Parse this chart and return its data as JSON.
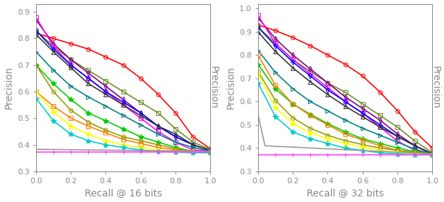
{
  "plot1": {
    "xlabel": "Recall @ 16 bits",
    "ylabel": "Precision",
    "ylim": [
      0.3,
      0.93
    ],
    "xlim": [
      0.0,
      1.0
    ],
    "yticks": [
      0.3,
      0.4,
      0.5,
      0.6,
      0.7,
      0.8,
      0.9
    ],
    "xticks": [
      0.0,
      0.2,
      0.4,
      0.6,
      0.8,
      1.0
    ]
  },
  "plot2": {
    "xlabel": "Recall @ 32 bits",
    "ylabel": "Precision",
    "ylim": [
      0.3,
      1.02
    ],
    "xlim": [
      0.0,
      1.0
    ],
    "yticks": [
      0.3,
      0.4,
      0.5,
      0.6,
      0.7,
      0.8,
      0.9,
      1.0
    ],
    "xticks": [
      0.0,
      0.2,
      0.4,
      0.6,
      0.8,
      1.0
    ]
  },
  "curves_16": [
    {
      "color": "#ff0000",
      "marker": "o",
      "markersize": 4,
      "lw": 1.2,
      "x": [
        0.0,
        0.1,
        0.2,
        0.3,
        0.4,
        0.5,
        0.6,
        0.7,
        0.8,
        0.9,
        1.0
      ],
      "y": [
        0.82,
        0.8,
        0.78,
        0.76,
        0.73,
        0.7,
        0.65,
        0.59,
        0.52,
        0.43,
        0.385
      ]
    },
    {
      "color": "#6b8e23",
      "marker": "s",
      "markersize": 4,
      "lw": 1.2,
      "x": [
        0.0,
        0.1,
        0.2,
        0.3,
        0.4,
        0.5,
        0.6,
        0.7,
        0.8,
        0.9,
        1.0
      ],
      "y": [
        0.83,
        0.77,
        0.72,
        0.68,
        0.64,
        0.6,
        0.56,
        0.52,
        0.46,
        0.41,
        0.382
      ]
    },
    {
      "color": "#800080",
      "marker": "d",
      "markersize": 4,
      "lw": 1.2,
      "x": [
        0.0,
        0.1,
        0.2,
        0.3,
        0.4,
        0.5,
        0.6,
        0.7,
        0.8,
        0.9,
        1.0
      ],
      "y": [
        0.87,
        0.78,
        0.72,
        0.67,
        0.62,
        0.57,
        0.52,
        0.47,
        0.43,
        0.4,
        0.378
      ]
    },
    {
      "color": "#ff00ff",
      "marker": "s",
      "markersize": 4,
      "lw": 1.2,
      "x": [
        0.0,
        0.1,
        0.2,
        0.3,
        0.4,
        0.5,
        0.6,
        0.7,
        0.8,
        0.9,
        1.0
      ],
      "y": [
        0.88,
        0.77,
        0.7,
        0.65,
        0.6,
        0.55,
        0.5,
        0.45,
        0.41,
        0.38,
        0.376
      ]
    },
    {
      "color": "#0000ff",
      "marker": "d",
      "markersize": 4,
      "lw": 1.2,
      "x": [
        0.0,
        0.1,
        0.2,
        0.3,
        0.4,
        0.5,
        0.6,
        0.7,
        0.8,
        0.9,
        1.0
      ],
      "y": [
        0.83,
        0.76,
        0.7,
        0.65,
        0.6,
        0.56,
        0.52,
        0.47,
        0.43,
        0.4,
        0.378
      ]
    },
    {
      "color": "#333333",
      "marker": "^",
      "markersize": 5,
      "lw": 1.2,
      "x": [
        0.0,
        0.1,
        0.2,
        0.3,
        0.4,
        0.5,
        0.6,
        0.7,
        0.8,
        0.9,
        1.0
      ],
      "y": [
        0.815,
        0.75,
        0.69,
        0.63,
        0.59,
        0.55,
        0.51,
        0.47,
        0.44,
        0.4,
        0.378
      ]
    },
    {
      "color": "#008080",
      "marker": ">",
      "markersize": 4,
      "lw": 1.2,
      "x": [
        0.0,
        0.1,
        0.2,
        0.3,
        0.4,
        0.5,
        0.6,
        0.7,
        0.8,
        0.9,
        1.0
      ],
      "y": [
        0.75,
        0.68,
        0.62,
        0.58,
        0.545,
        0.51,
        0.475,
        0.44,
        0.41,
        0.39,
        0.375
      ]
    },
    {
      "color": "#00cc00",
      "marker": "*",
      "markersize": 6,
      "lw": 1.2,
      "x": [
        0.0,
        0.1,
        0.2,
        0.3,
        0.4,
        0.5,
        0.6,
        0.7,
        0.8,
        0.9,
        1.0
      ],
      "y": [
        0.7,
        0.63,
        0.57,
        0.52,
        0.49,
        0.46,
        0.43,
        0.41,
        0.39,
        0.375,
        0.372
      ]
    },
    {
      "color": "#ff8000",
      "marker": "s",
      "markersize": 4,
      "lw": 1.2,
      "x": [
        0.0,
        0.1,
        0.2,
        0.3,
        0.4,
        0.5,
        0.6,
        0.7,
        0.8,
        0.9,
        1.0
      ],
      "y": [
        0.6,
        0.545,
        0.5,
        0.47,
        0.445,
        0.42,
        0.405,
        0.39,
        0.38,
        0.375,
        0.372
      ]
    },
    {
      "color": "#999900",
      "marker": "o",
      "markersize": 4,
      "lw": 1.2,
      "x": [
        0.0,
        0.1,
        0.2,
        0.3,
        0.4,
        0.5,
        0.6,
        0.7,
        0.8,
        0.9,
        1.0
      ],
      "y": [
        0.7,
        0.6,
        0.53,
        0.485,
        0.455,
        0.43,
        0.415,
        0.4,
        0.385,
        0.375,
        0.372
      ]
    },
    {
      "color": "#ffff00",
      "marker": "*",
      "markersize": 6,
      "lw": 1.2,
      "x": [
        0.0,
        0.1,
        0.2,
        0.3,
        0.4,
        0.5,
        0.6,
        0.7,
        0.8,
        0.9,
        1.0
      ],
      "y": [
        0.6,
        0.525,
        0.47,
        0.44,
        0.415,
        0.4,
        0.39,
        0.38,
        0.375,
        0.372,
        0.37
      ]
    },
    {
      "color": "#00cccc",
      "marker": "*",
      "markersize": 6,
      "lw": 1.2,
      "x": [
        0.0,
        0.1,
        0.2,
        0.3,
        0.4,
        0.5,
        0.6,
        0.7,
        0.8,
        0.9,
        1.0
      ],
      "y": [
        0.575,
        0.49,
        0.44,
        0.415,
        0.4,
        0.39,
        0.38,
        0.375,
        0.372,
        0.37,
        0.37
      ]
    },
    {
      "color": "#999999",
      "marker": null,
      "markersize": 0,
      "lw": 1.2,
      "x": [
        0.0,
        1.0
      ],
      "y": [
        0.383,
        0.375
      ]
    },
    {
      "color": "#ff44ff",
      "marker": "+",
      "markersize": 5,
      "lw": 1.2,
      "x": [
        0.0,
        0.1,
        0.2,
        0.3,
        0.4,
        0.5,
        0.6,
        0.7,
        0.8,
        0.9,
        1.0
      ],
      "y": [
        0.372,
        0.372,
        0.372,
        0.372,
        0.372,
        0.372,
        0.372,
        0.372,
        0.372,
        0.372,
        0.372
      ]
    }
  ],
  "curves_32": [
    {
      "color": "#ff0000",
      "marker": "o",
      "markersize": 4,
      "lw": 1.2,
      "x": [
        0.0,
        0.1,
        0.2,
        0.3,
        0.4,
        0.5,
        0.6,
        0.7,
        0.8,
        0.9,
        1.0
      ],
      "y": [
        0.93,
        0.905,
        0.875,
        0.84,
        0.8,
        0.76,
        0.71,
        0.64,
        0.56,
        0.47,
        0.4
      ]
    },
    {
      "color": "#6b8e23",
      "marker": "s",
      "markersize": 4,
      "lw": 1.2,
      "x": [
        0.0,
        0.1,
        0.2,
        0.3,
        0.4,
        0.5,
        0.6,
        0.7,
        0.8,
        0.9,
        1.0
      ],
      "y": [
        0.92,
        0.85,
        0.78,
        0.73,
        0.68,
        0.64,
        0.59,
        0.54,
        0.49,
        0.43,
        0.38
      ]
    },
    {
      "color": "#800080",
      "marker": "d",
      "markersize": 4,
      "lw": 1.2,
      "x": [
        0.0,
        0.1,
        0.2,
        0.3,
        0.4,
        0.5,
        0.6,
        0.7,
        0.8,
        0.9,
        1.0
      ],
      "y": [
        0.96,
        0.87,
        0.8,
        0.74,
        0.68,
        0.62,
        0.57,
        0.52,
        0.46,
        0.41,
        0.375
      ]
    },
    {
      "color": "#ff00ff",
      "marker": "s",
      "markersize": 4,
      "lw": 1.2,
      "x": [
        0.0,
        0.1,
        0.2,
        0.3,
        0.4,
        0.5,
        0.6,
        0.7,
        0.8,
        0.9,
        1.0
      ],
      "y": [
        0.97,
        0.85,
        0.78,
        0.72,
        0.66,
        0.6,
        0.55,
        0.49,
        0.43,
        0.39,
        0.37
      ]
    },
    {
      "color": "#0000ff",
      "marker": "d",
      "markersize": 4,
      "lw": 1.2,
      "x": [
        0.0,
        0.1,
        0.2,
        0.3,
        0.4,
        0.5,
        0.6,
        0.7,
        0.8,
        0.9,
        1.0
      ],
      "y": [
        0.92,
        0.84,
        0.77,
        0.71,
        0.65,
        0.6,
        0.55,
        0.5,
        0.45,
        0.41,
        0.375
      ]
    },
    {
      "color": "#333333",
      "marker": "^",
      "markersize": 5,
      "lw": 1.2,
      "x": [
        0.0,
        0.1,
        0.2,
        0.3,
        0.4,
        0.5,
        0.6,
        0.7,
        0.8,
        0.9,
        1.0
      ],
      "y": [
        0.9,
        0.815,
        0.745,
        0.685,
        0.63,
        0.58,
        0.535,
        0.49,
        0.45,
        0.41,
        0.375
      ]
    },
    {
      "color": "#008080",
      "marker": ">",
      "markersize": 4,
      "lw": 1.2,
      "x": [
        0.0,
        0.1,
        0.2,
        0.3,
        0.4,
        0.5,
        0.6,
        0.7,
        0.8,
        0.9,
        1.0
      ],
      "y": [
        0.82,
        0.725,
        0.655,
        0.6,
        0.56,
        0.52,
        0.485,
        0.455,
        0.425,
        0.395,
        0.375
      ]
    },
    {
      "color": "#00cc00",
      "marker": "*",
      "markersize": 6,
      "lw": 1.2,
      "x": [
        0.0,
        0.1,
        0.2,
        0.3,
        0.4,
        0.5,
        0.6,
        0.7,
        0.8,
        0.9,
        1.0
      ],
      "y": [
        0.76,
        0.655,
        0.59,
        0.545,
        0.505,
        0.47,
        0.44,
        0.42,
        0.4,
        0.385,
        0.375
      ]
    },
    {
      "color": "#ff8000",
      "marker": "s",
      "markersize": 4,
      "lw": 1.2,
      "x": [
        0.0,
        0.1,
        0.2,
        0.3,
        0.4,
        0.5,
        0.6,
        0.7,
        0.8,
        0.9,
        1.0
      ],
      "y": [
        0.8,
        0.67,
        0.59,
        0.54,
        0.5,
        0.46,
        0.435,
        0.41,
        0.39,
        0.378,
        0.372
      ]
    },
    {
      "color": "#999900",
      "marker": "o",
      "markersize": 4,
      "lw": 1.2,
      "x": [
        0.0,
        0.1,
        0.2,
        0.3,
        0.4,
        0.5,
        0.6,
        0.7,
        0.8,
        0.9,
        1.0
      ],
      "y": [
        0.73,
        0.605,
        0.53,
        0.485,
        0.455,
        0.432,
        0.415,
        0.4,
        0.39,
        0.382,
        0.375
      ]
    },
    {
      "color": "#ffff00",
      "marker": "*",
      "markersize": 6,
      "lw": 1.2,
      "x": [
        0.0,
        0.1,
        0.2,
        0.3,
        0.4,
        0.5,
        0.6,
        0.7,
        0.8,
        0.9,
        1.0
      ],
      "y": [
        0.72,
        0.575,
        0.505,
        0.465,
        0.44,
        0.42,
        0.405,
        0.39,
        0.382,
        0.375,
        0.372
      ]
    },
    {
      "color": "#00cccc",
      "marker": "*",
      "markersize": 6,
      "lw": 1.2,
      "x": [
        0.0,
        0.1,
        0.2,
        0.3,
        0.4,
        0.5,
        0.6,
        0.7,
        0.8,
        0.9,
        1.0
      ],
      "y": [
        0.68,
        0.535,
        0.47,
        0.44,
        0.42,
        0.4,
        0.39,
        0.38,
        0.375,
        0.372,
        0.37
      ]
    },
    {
      "color": "#999999",
      "marker": null,
      "markersize": 0,
      "lw": 1.2,
      "x": [
        0.0,
        0.04,
        1.0
      ],
      "y": [
        0.545,
        0.41,
        0.375
      ]
    },
    {
      "color": "#ff44ff",
      "marker": "+",
      "markersize": 5,
      "lw": 1.2,
      "x": [
        0.0,
        0.1,
        0.2,
        0.3,
        0.4,
        0.5,
        0.6,
        0.7,
        0.8,
        0.9,
        1.0
      ],
      "y": [
        0.372,
        0.372,
        0.372,
        0.372,
        0.372,
        0.372,
        0.372,
        0.372,
        0.372,
        0.372,
        0.372
      ]
    }
  ],
  "tick_color": "#888888",
  "label_color": "#888888",
  "spine_color": "#888888",
  "tick_fontsize": 8,
  "label_fontsize": 10,
  "figsize": [
    6.4,
    2.91
  ],
  "dpi": 100
}
